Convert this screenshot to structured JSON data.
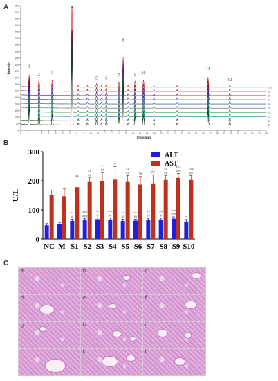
{
  "panels": {
    "A": {
      "label": "A"
    },
    "B": {
      "label": "B"
    },
    "C": {
      "label": "C"
    }
  },
  "chart_data": [
    {
      "type": "line",
      "panel": "A",
      "title": "",
      "xlabel": "Time/min",
      "ylabel": "Intensity",
      "xlim": [
        0,
        35
      ],
      "ylim": [
        0,
        950
      ],
      "x_ticks": [
        0,
        1,
        2,
        3,
        4,
        5,
        6,
        7,
        8,
        9,
        10,
        11,
        12,
        13,
        14,
        15,
        16,
        17,
        18,
        19,
        20,
        21,
        22,
        23,
        24,
        25,
        26,
        27,
        28,
        29,
        30,
        31,
        32,
        33,
        34,
        35
      ],
      "y_ticks": [
        0,
        50,
        100,
        150,
        200,
        250,
        300,
        350,
        400,
        450,
        500,
        550,
        600,
        650,
        700,
        750,
        800,
        850,
        900,
        950
      ],
      "peaks": [
        {
          "label": "1",
          "time": 1.2
        },
        {
          "label": "2",
          "time": 2.6
        },
        {
          "label": "3",
          "time": 4.5
        },
        {
          "label": "4",
          "time": 7.3
        },
        {
          "label": "5",
          "time": 10.8
        },
        {
          "label": "6",
          "time": 12.2
        },
        {
          "label": "7",
          "time": 14.0
        },
        {
          "label": "8",
          "time": 14.6
        },
        {
          "label": "9",
          "time": 16.3
        },
        {
          "label": "10",
          "time": 17.5
        },
        {
          "label": "11",
          "time": 26.7
        },
        {
          "label": "12",
          "time": 29.8
        }
      ],
      "series": [
        {
          "name": "S10",
          "color": "#d81b1b"
        },
        {
          "name": "S9",
          "color": "#8b0000"
        },
        {
          "name": "S8",
          "color": "#4b0082"
        },
        {
          "name": "S7",
          "color": "#2a2a9c"
        },
        {
          "name": "S6",
          "color": "#0b3d91"
        },
        {
          "name": "S5",
          "color": "#555555"
        },
        {
          "name": "S4",
          "color": "#1e7b1e"
        },
        {
          "name": "S3",
          "color": "#0077aa"
        },
        {
          "name": "S2",
          "color": "#006400"
        },
        {
          "name": "S1",
          "color": "#222222"
        }
      ]
    },
    {
      "type": "bar",
      "panel": "B",
      "title": "",
      "xlabel": "",
      "ylabel": "U/L",
      "ylim": [
        0,
        300
      ],
      "y_ticks": [
        0,
        100,
        200,
        300
      ],
      "categories": [
        "NC",
        "M",
        "S1",
        "S2",
        "S3",
        "S4",
        "S5",
        "S6",
        "S7",
        "S8",
        "S9",
        "S10"
      ],
      "series": [
        {
          "name": "ALT",
          "color": "#1f1fe0",
          "values": [
            47,
            52,
            62,
            65,
            68,
            67,
            62,
            63,
            65,
            67,
            70,
            60
          ],
          "errors": [
            6,
            5,
            6,
            5,
            5,
            6,
            6,
            5,
            6,
            5,
            6,
            7
          ],
          "annotations": [
            "",
            "",
            "**\n#",
            "***\n###",
            "**\n#",
            "***\n#",
            "**\n#",
            "***\n##",
            "**\n##",
            "**\n#",
            "***\n###",
            "*"
          ]
        },
        {
          "name": "AST",
          "color": "#c0301f",
          "values": [
            150,
            147,
            178,
            196,
            200,
            204,
            196,
            187,
            191,
            203,
            210,
            203
          ],
          "errors": [
            18,
            25,
            28,
            15,
            28,
            45,
            22,
            28,
            30,
            15,
            15,
            15
          ],
          "annotations": [
            "",
            "",
            "*#",
            "**\n##",
            "**\n##",
            "#",
            "**\n##",
            "*#",
            "**\n##",
            "**\n##",
            "***\n###",
            "***\n##"
          ]
        }
      ]
    }
  ],
  "histology": {
    "tiles": [
      "a",
      "b",
      "c",
      "d",
      "e",
      "f",
      "g",
      "h",
      "i",
      "j",
      "k",
      "l"
    ]
  }
}
